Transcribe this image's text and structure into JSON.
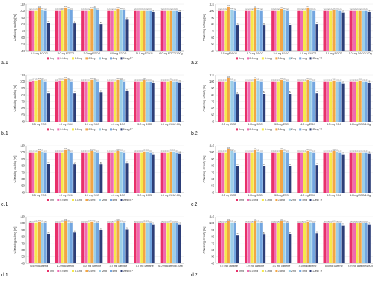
{
  "figure": {
    "title": ""
  },
  "legend": {
    "items": [
      {
        "label": "0mg",
        "color": "#e8306a"
      },
      {
        "label": "0.04mg",
        "color": "#f06ab0"
      },
      {
        "label": "0.1mg",
        "color": "#f5e94a"
      },
      {
        "label": "0.5mg",
        "color": "#f3a545"
      },
      {
        "label": "2mg",
        "color": "#9ccfe8"
      },
      {
        "label": "4mg",
        "color": "#73a6e0"
      },
      {
        "label": "20mg TP",
        "color": "#2d3e78"
      }
    ]
  },
  "chart_data": [
    {
      "panel": "a.1",
      "type": "bar",
      "ylabel": "Chelating activity [%]",
      "ylim": [
        40,
        110
      ],
      "yticks": [
        40,
        50,
        60,
        70,
        80,
        90,
        100,
        110
      ],
      "categories": [
        "0.5 mg EGCG",
        "1.0 mg EGCG",
        "3.0 mg EGCG",
        "4.0 mg EGCG",
        "5.0 mg EGCG",
        "6.0 mg EGCG/100g"
      ],
      "series": [
        {
          "name": "0mg",
          "values": [
            100,
            100,
            100,
            100,
            100,
            100
          ]
        },
        {
          "name": "0.04mg",
          "values": [
            100,
            100,
            100,
            100,
            100,
            100
          ]
        },
        {
          "name": "0.1mg",
          "values": [
            100,
            100.5,
            100,
            100,
            100,
            100
          ]
        },
        {
          "name": "0.5mg",
          "values": [
            104,
            105,
            103,
            103,
            100,
            100
          ]
        },
        {
          "name": "2mg",
          "values": [
            102,
            103,
            104,
            102,
            100,
            100
          ]
        },
        {
          "name": "4mg",
          "values": [
            100,
            101,
            101,
            101,
            100,
            100
          ]
        },
        {
          "name": "20mg TP",
          "values": [
            82,
            81,
            80,
            87,
            98,
            98
          ]
        }
      ]
    },
    {
      "panel": "a.2",
      "type": "bar",
      "ylabel": "Chelating activity [%]",
      "ylim": [
        40,
        110
      ],
      "yticks": [
        40,
        50,
        60,
        70,
        80,
        90,
        100,
        110
      ],
      "categories": [
        "0.5 mg EGCG",
        "1.0 mg EGCG",
        "3.0 mg EGCG",
        "4.0 mg EGCG",
        "5.0 mg EGCG",
        "6.0 mg EGCG/100g"
      ],
      "series": [
        {
          "name": "0mg",
          "values": [
            100,
            100,
            100,
            100,
            100,
            100
          ]
        },
        {
          "name": "0.04mg",
          "values": [
            100,
            100,
            100,
            100,
            100,
            100
          ]
        },
        {
          "name": "0.1mg",
          "values": [
            100,
            100,
            100,
            100,
            100,
            100
          ]
        },
        {
          "name": "0.5mg",
          "values": [
            106,
            104,
            103,
            105,
            101,
            100
          ]
        },
        {
          "name": "2mg",
          "values": [
            102,
            102,
            102,
            101,
            101,
            100
          ]
        },
        {
          "name": "4mg",
          "values": [
            100,
            100,
            100,
            100,
            100,
            100
          ]
        },
        {
          "name": "20mg TP",
          "values": [
            78,
            78,
            79,
            80,
            97,
            98
          ]
        }
      ]
    },
    {
      "panel": "b.1",
      "type": "bar",
      "ylabel": "Chelating activity [%]",
      "ylim": [
        40,
        110
      ],
      "yticks": [
        40,
        50,
        60,
        70,
        80,
        90,
        100,
        110
      ],
      "categories": [
        "0.5 mg EGC",
        "1.0 mg EGC",
        "3.0 mg EGC",
        "4.0 mg EGC",
        "5.0 mg EGC",
        "6.0 mg EGC/100g"
      ],
      "series": [
        {
          "name": "0mg",
          "values": [
            100,
            100,
            100,
            100,
            100,
            100
          ]
        },
        {
          "name": "0.04mg",
          "values": [
            101,
            101,
            100,
            100,
            100,
            100
          ]
        },
        {
          "name": "0.1mg",
          "values": [
            101,
            101,
            100,
            100,
            100,
            100
          ]
        },
        {
          "name": "0.5mg",
          "values": [
            103,
            104,
            103,
            103,
            102,
            101
          ]
        },
        {
          "name": "2mg",
          "values": [
            102,
            102,
            102,
            102,
            100,
            100
          ]
        },
        {
          "name": "4mg",
          "values": [
            100,
            100,
            100,
            100,
            100,
            100
          ]
        },
        {
          "name": "20mg TP",
          "values": [
            83,
            83,
            84,
            86,
            98,
            99
          ]
        }
      ]
    },
    {
      "panel": "b.2",
      "type": "bar",
      "ylabel": "Chelating activity [%]",
      "ylim": [
        40,
        110
      ],
      "yticks": [
        40,
        50,
        60,
        70,
        80,
        90,
        100,
        110
      ],
      "categories": [
        "0.5 mg EGC",
        "1.0 mg EGC",
        "3.0 mg EGC",
        "4.0 mg EGC",
        "5.0 mg EGC",
        "6.0 mg EGC/100g"
      ],
      "series": [
        {
          "name": "0mg",
          "values": [
            100,
            100,
            100,
            100,
            100,
            100
          ]
        },
        {
          "name": "0.04mg",
          "values": [
            100,
            100,
            100,
            100,
            100,
            100
          ]
        },
        {
          "name": "0.1mg",
          "values": [
            100,
            100,
            100,
            100,
            100,
            100
          ]
        },
        {
          "name": "0.5mg",
          "values": [
            105,
            104,
            103,
            103,
            101,
            101
          ]
        },
        {
          "name": "2mg",
          "values": [
            101,
            101,
            101,
            101,
            100,
            100
          ]
        },
        {
          "name": "4mg",
          "values": [
            100,
            100,
            100,
            100,
            100,
            100
          ]
        },
        {
          "name": "20mg TP",
          "values": [
            81,
            82,
            82,
            83,
            97,
            98
          ]
        }
      ]
    },
    {
      "panel": "c.1",
      "type": "bar",
      "ylabel": "Chelating activity [%]",
      "ylim": [
        40,
        110
      ],
      "yticks": [
        40,
        50,
        60,
        70,
        80,
        90,
        100,
        110
      ],
      "categories": [
        "0.5 mg ECG",
        "1.0 mg ECG",
        "3.0 mg ECG",
        "4.0 mg ECG",
        "5.0 mg ECG",
        "6.0 mg ECG/100g"
      ],
      "series": [
        {
          "name": "0mg",
          "values": [
            100,
            100,
            100,
            100,
            100,
            100
          ]
        },
        {
          "name": "0.04mg",
          "values": [
            100,
            100,
            100,
            100,
            100,
            100
          ]
        },
        {
          "name": "0.1mg",
          "values": [
            100,
            100,
            100,
            100,
            100,
            100
          ]
        },
        {
          "name": "0.5mg",
          "values": [
            103,
            104,
            102,
            102,
            101,
            101
          ]
        },
        {
          "name": "2mg",
          "values": [
            101,
            102,
            101,
            101,
            101,
            101
          ]
        },
        {
          "name": "4mg",
          "values": [
            100,
            100,
            100,
            100,
            100,
            100
          ]
        },
        {
          "name": "20mg TP",
          "values": [
            83,
            82,
            82,
            84,
            97,
            98
          ]
        }
      ]
    },
    {
      "panel": "c.2",
      "type": "bar",
      "ylabel": "Chelating activity [%]",
      "ylim": [
        40,
        110
      ],
      "yticks": [
        40,
        50,
        60,
        70,
        80,
        90,
        100,
        110
      ],
      "categories": [
        "0.5 mg ECG",
        "1.0 mg ECG",
        "3.0 mg ECG",
        "4.0 mg ECG",
        "5.0 mg ECG",
        "6.0 mg ECG/100g"
      ],
      "series": [
        {
          "name": "0mg",
          "values": [
            100,
            100,
            100,
            100,
            100,
            100
          ]
        },
        {
          "name": "0.04mg",
          "values": [
            100,
            100,
            100,
            100,
            100,
            100
          ]
        },
        {
          "name": "0.1mg",
          "values": [
            100,
            100,
            100,
            100,
            100,
            100
          ]
        },
        {
          "name": "0.5mg",
          "values": [
            105,
            104,
            104,
            103,
            102,
            100
          ]
        },
        {
          "name": "2mg",
          "values": [
            102,
            101,
            101,
            101,
            101,
            100
          ]
        },
        {
          "name": "4mg",
          "values": [
            100,
            100,
            100,
            100,
            100,
            100
          ]
        },
        {
          "name": "20mg TP",
          "values": [
            80,
            80,
            80,
            81,
            97,
            98
          ]
        }
      ]
    },
    {
      "panel": "d.1",
      "type": "bar",
      "ylabel": "Chelating activity [%]",
      "ylim": [
        40,
        110
      ],
      "yticks": [
        40,
        50,
        60,
        70,
        80,
        90,
        100,
        110
      ],
      "categories": [
        "0.5 mg caffeine",
        "1.0 mg caffeine",
        "3.0 mg caffeine",
        "4.0 mg caffeine",
        "5.0 mg caffeine",
        "6.0 mg caffeine/100g"
      ],
      "series": [
        {
          "name": "0mg",
          "values": [
            100,
            100,
            100,
            100,
            100,
            100
          ]
        },
        {
          "name": "0.04mg",
          "values": [
            100,
            100,
            100,
            100,
            100,
            100
          ]
        },
        {
          "name": "0.1mg",
          "values": [
            101,
            101,
            101,
            101,
            100,
            100
          ]
        },
        {
          "name": "0.5mg",
          "values": [
            102,
            103,
            102,
            103,
            101,
            101
          ]
        },
        {
          "name": "2mg",
          "values": [
            101,
            101,
            101,
            101,
            101,
            100
          ]
        },
        {
          "name": "4mg",
          "values": [
            100,
            100,
            100,
            100,
            100,
            100
          ]
        },
        {
          "name": "20mg TP",
          "values": [
            84,
            86,
            90,
            91,
            98,
            98
          ]
        }
      ]
    },
    {
      "panel": "d.2",
      "type": "bar",
      "ylabel": "Chelating activity [%]",
      "ylim": [
        40,
        110
      ],
      "yticks": [
        40,
        50,
        60,
        70,
        80,
        90,
        100,
        110
      ],
      "categories": [
        "0.5 mg caffeine",
        "1.0 mg caffeine",
        "3.0 mg caffeine",
        "4.0 mg caffeine",
        "5.0 mg caffeine",
        "6.0 mg caffeine/100g"
      ],
      "series": [
        {
          "name": "0mg",
          "values": [
            100,
            100,
            100,
            100,
            100,
            100
          ]
        },
        {
          "name": "0.04mg",
          "values": [
            100,
            100,
            100,
            100,
            100,
            100
          ]
        },
        {
          "name": "0.1mg",
          "values": [
            100,
            100,
            100,
            100,
            100,
            100
          ]
        },
        {
          "name": "0.5mg",
          "values": [
            103,
            103,
            103,
            102,
            101,
            100
          ]
        },
        {
          "name": "2mg",
          "values": [
            101,
            101,
            101,
            101,
            100,
            100
          ]
        },
        {
          "name": "4mg",
          "values": [
            100,
            100,
            100,
            100,
            100,
            100
          ]
        },
        {
          "name": "20mg TP",
          "values": [
            82,
            83,
            84,
            85,
            97,
            98
          ]
        }
      ]
    }
  ]
}
